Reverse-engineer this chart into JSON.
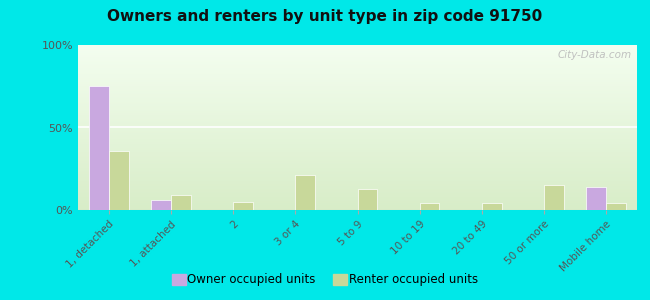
{
  "title": "Owners and renters by unit type in zip code 91750",
  "categories": [
    "1, detached",
    "1, attached",
    "2",
    "3 or 4",
    "5 to 9",
    "10 to 19",
    "20 to 49",
    "50 or more",
    "Mobile home"
  ],
  "owner_values": [
    75,
    6,
    0,
    0,
    0,
    0,
    0,
    0,
    14
  ],
  "renter_values": [
    36,
    9,
    5,
    21,
    13,
    4,
    4,
    15,
    4
  ],
  "owner_color": "#c9a8e0",
  "renter_color": "#c8d89a",
  "outer_bg": "#00e8e8",
  "ylim": [
    0,
    100
  ],
  "yticks": [
    0,
    50,
    100
  ],
  "ytick_labels": [
    "0%",
    "50%",
    "100%"
  ],
  "legend_owner": "Owner occupied units",
  "legend_renter": "Renter occupied units",
  "watermark": "City-Data.com",
  "bar_width": 0.32,
  "figsize": [
    6.5,
    3.0
  ],
  "dpi": 100
}
